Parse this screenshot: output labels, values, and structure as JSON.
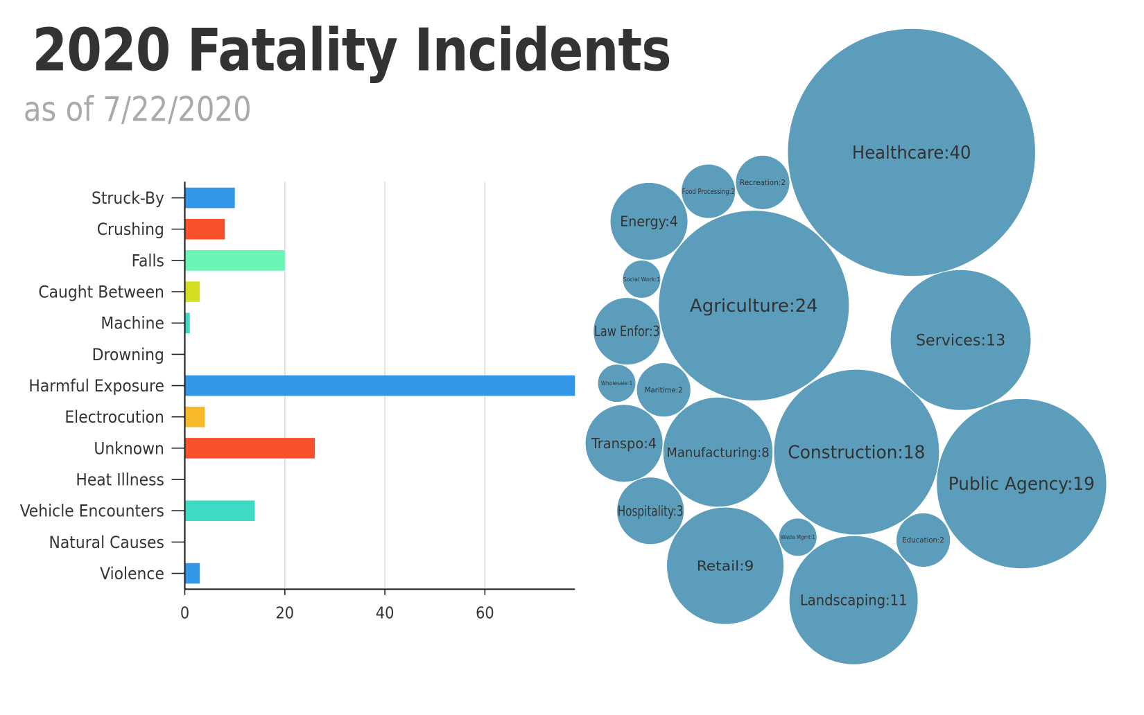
{
  "header": {
    "title": "2020 Fatality Incidents",
    "subtitle": "as of 7/22/2020"
  },
  "chart_data": [
    {
      "type": "bar",
      "orientation": "horizontal",
      "categories": [
        "Struck-By",
        "Crushing",
        "Falls",
        "Caught Between",
        "Machine",
        "Drowning",
        "Harmful Exposure",
        "Electrocution",
        "Unknown",
        "Heat Illness",
        "Vehicle Encounters",
        "Natural Causes",
        "Violence"
      ],
      "values": [
        10,
        8,
        20,
        3,
        1,
        0,
        78,
        4,
        26,
        0,
        14,
        0,
        3
      ],
      "colors": [
        "#3296e8",
        "#f8502c",
        "#6af5b4",
        "#d4df22",
        "#3dd9c3",
        "#3296e8",
        "#3296e8",
        "#f7b82a",
        "#f8502c",
        "#3296e8",
        "#3ddbc3",
        "#3296e8",
        "#3296e8"
      ],
      "xticks": [
        "0",
        "20",
        "40",
        "60"
      ],
      "xlim": [
        0,
        78
      ],
      "grid": true
    },
    {
      "type": "bubble",
      "color": "#5b9dbb",
      "items": [
        {
          "label": "Healthcare:40",
          "value": 40
        },
        {
          "label": "Agriculture:24",
          "value": 24
        },
        {
          "label": "Public Agency:19",
          "value": 19
        },
        {
          "label": "Construction:18",
          "value": 18
        },
        {
          "label": "Services:13",
          "value": 13
        },
        {
          "label": "Landscaping:11",
          "value": 11
        },
        {
          "label": "Retail:9",
          "value": 9
        },
        {
          "label": "Manufacturing:8",
          "value": 8
        },
        {
          "label": "Energy:4",
          "value": 4
        },
        {
          "label": "Transpo:4",
          "value": 4
        },
        {
          "label": "Law Enfor:3",
          "value": 3
        },
        {
          "label": "Hospitality:3",
          "value": 3
        },
        {
          "label": "Food Processing:2",
          "value": 2
        },
        {
          "label": "Recreation:2",
          "value": 2
        },
        {
          "label": "Maritime:2",
          "value": 2
        },
        {
          "label": "Education:2",
          "value": 2
        },
        {
          "label": "Social Work:1",
          "value": 1
        },
        {
          "label": "Wholesale:1",
          "value": 1
        },
        {
          "label": "Waste Mgmt:1",
          "value": 1
        }
      ]
    }
  ]
}
